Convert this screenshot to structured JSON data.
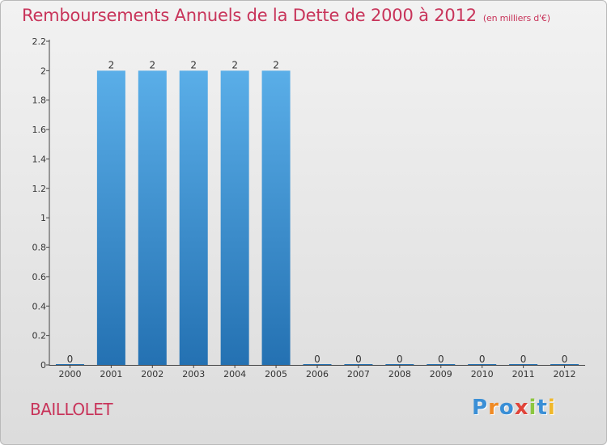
{
  "chart_data": {
    "type": "bar",
    "title": "Remboursements Annuels de la Dette de 2000 à 2012",
    "subtitle": "(en milliers d'€)",
    "categories": [
      "2000",
      "2001",
      "2002",
      "2003",
      "2004",
      "2005",
      "2006",
      "2007",
      "2008",
      "2009",
      "2010",
      "2011",
      "2012"
    ],
    "values": [
      0,
      2,
      2,
      2,
      2,
      2,
      0,
      0,
      0,
      0,
      0,
      0,
      0
    ],
    "value_labels": [
      "0",
      "2",
      "2",
      "2",
      "2",
      "2",
      "0",
      "0",
      "0",
      "0",
      "0",
      "0",
      "0"
    ],
    "yticks": [
      "0",
      "0.2",
      "0.4",
      "0.6",
      "0.8",
      "1",
      "1.2",
      "1.4",
      "1.6",
      "1.8",
      "2",
      "2.2"
    ],
    "ylim": [
      0,
      2.2
    ],
    "grid": false,
    "colors": {
      "bar_top": "#5aaee8",
      "bar_bottom": "#2471b2",
      "title": "#c8345a"
    }
  },
  "commune": "BAILLOLET",
  "logo": {
    "letters": [
      "P",
      "r",
      "o",
      "x",
      "i",
      "t",
      "i"
    ],
    "colors": [
      "#3a8fd6",
      "#f08a24",
      "#3a8fd6",
      "#e0443a",
      "#8cc63f",
      "#3a8fd6",
      "#f0b82a"
    ]
  }
}
